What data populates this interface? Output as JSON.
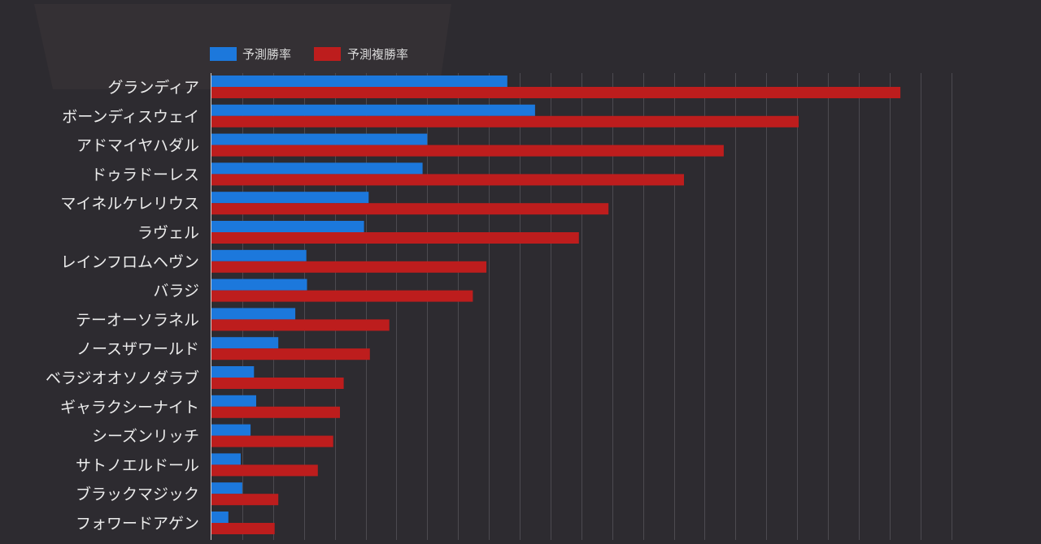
{
  "colors": {
    "background": "#2d2b30",
    "win": "#1c78dc",
    "place": "#bd1d1d",
    "grid": "#4c4a50",
    "axis": "#cfcfcf",
    "label": "#ececec",
    "legend_text": "#d8d8d8",
    "banner": "#3a3438"
  },
  "chart_data": {
    "type": "bar",
    "orientation": "horizontal",
    "title": "",
    "xlabel": "",
    "ylabel": "",
    "xlim": [
      0,
      24
    ],
    "grid": true,
    "legend_position": "top",
    "categories": [
      "グランディア",
      "ボーンディスウェイ",
      "アドマイヤハダル",
      "ドゥラドーレス",
      "マイネルケレリウス",
      "ラヴェル",
      "レインフロムヘヴン",
      "バラジ",
      "テーオーソラネル",
      "ノースザワールド",
      "ベラジオオソノダラブ",
      "ギャラクシーナイト",
      "シーズンリッチ",
      "サトノエルドール",
      "ブラックマジック",
      "フォワードアゲン"
    ],
    "series": [
      {
        "name": "予測勝率",
        "color_key": "win",
        "values": [
          9.6,
          10.5,
          7.0,
          6.85,
          5.1,
          4.95,
          3.08,
          3.1,
          2.72,
          2.17,
          1.38,
          1.45,
          1.27,
          0.95,
          1.0,
          0.55
        ]
      },
      {
        "name": "予測複勝率",
        "color_key": "place",
        "values": [
          22.35,
          19.05,
          16.62,
          15.33,
          12.88,
          11.92,
          8.92,
          8.48,
          5.77,
          5.14,
          4.29,
          4.17,
          3.95,
          3.45,
          2.17,
          2.05
        ]
      }
    ]
  }
}
